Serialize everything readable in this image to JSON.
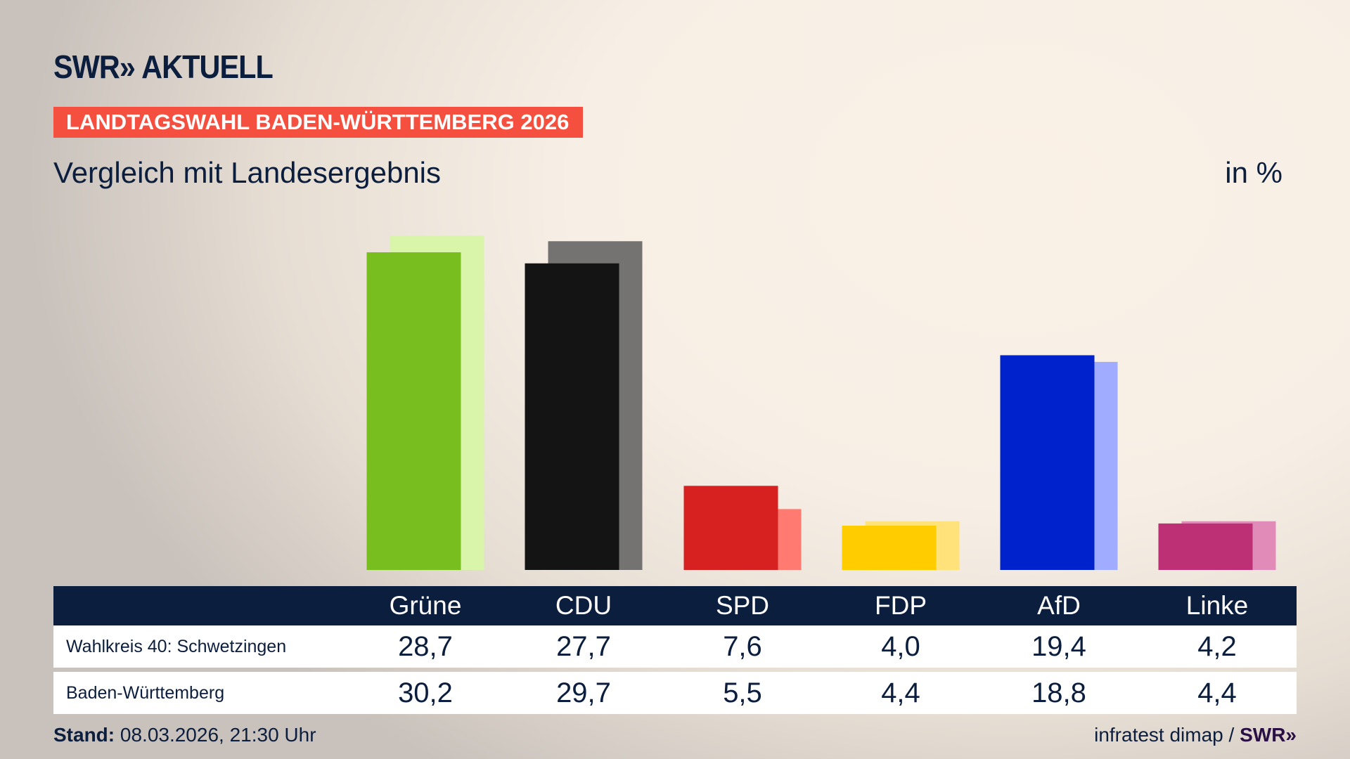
{
  "header": {
    "logo": "SWR» AKTUELL",
    "banner": "LANDTAGSWAHL BADEN-WÜRTTEMBERG 2026",
    "subtitle": "Vergleich mit Landesergebnis",
    "unit": "in %"
  },
  "colors": {
    "navy": "#0c1e3d",
    "banner": "#f5503f"
  },
  "chart_data": {
    "type": "bar",
    "categories": [
      "Grüne",
      "CDU",
      "SPD",
      "FDP",
      "AfD",
      "Linke"
    ],
    "series": [
      {
        "name": "Wahlkreis 40: Schwetzingen",
        "values": [
          28.7,
          27.7,
          7.6,
          4.0,
          19.4,
          4.2
        ],
        "display": [
          "28,7",
          "27,7",
          "7,6",
          "4,0",
          "19,4",
          "4,2"
        ],
        "colors": [
          "#78be1e",
          "#141414",
          "#d72020",
          "#ffcc00",
          "#0022cc",
          "#be3075"
        ]
      },
      {
        "name": "Baden-Württemberg",
        "values": [
          30.2,
          29.7,
          5.5,
          4.4,
          18.8,
          4.4
        ],
        "display": [
          "30,2",
          "29,7",
          "5,5",
          "4,4",
          "18,8",
          "4,4"
        ],
        "colors": [
          "#d8f5aa",
          "#757371",
          "#ff7a70",
          "#ffe37a",
          "#a0acff",
          "#e08bb8"
        ]
      }
    ],
    "ylim": [
      0,
      32
    ],
    "grid": false
  },
  "footer": {
    "stand_label": "Stand:",
    "stand_value": "08.03.2026, 21:30 Uhr",
    "source": "infratest dimap /",
    "source_logo": "SWR»"
  }
}
